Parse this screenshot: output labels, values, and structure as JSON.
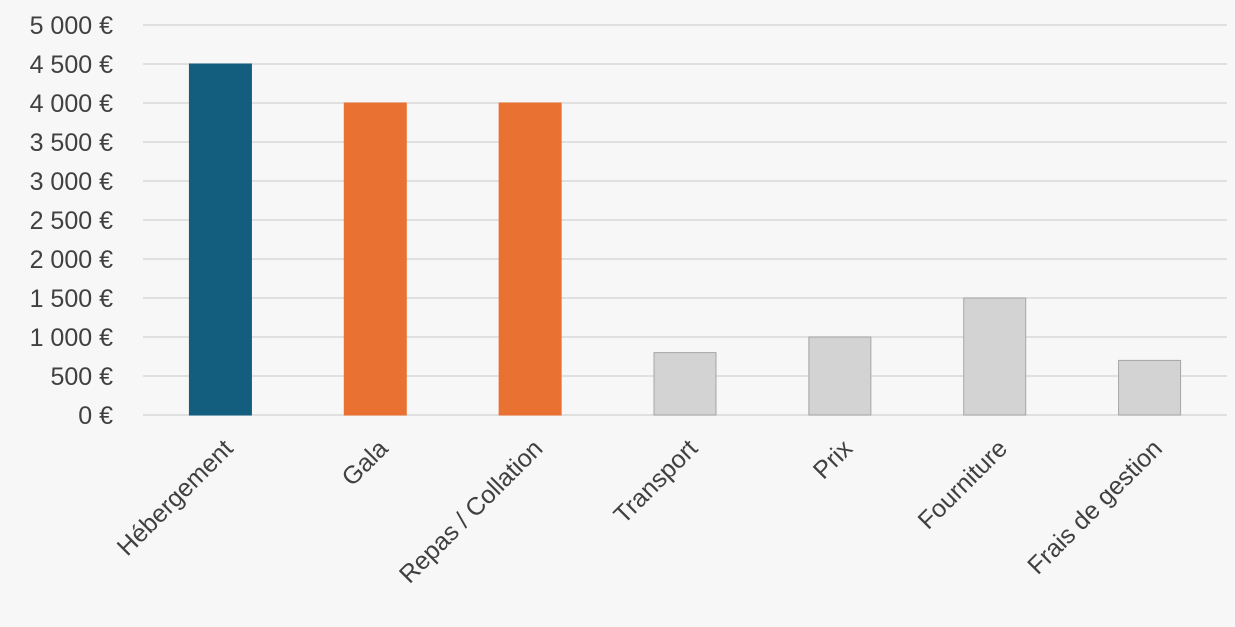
{
  "chart_data": {
    "type": "bar",
    "title": "",
    "xlabel": "",
    "ylabel": "",
    "categories": [
      "Hébergement",
      "Gala",
      "Repas / Collation",
      "Transport",
      "Prix",
      "Fourniture",
      "Frais de gestion"
    ],
    "values": [
      4500,
      4000,
      4000,
      800,
      1000,
      1500,
      700
    ],
    "ylim": [
      0,
      5000
    ],
    "yticks": [
      0,
      500,
      1000,
      1500,
      2000,
      2500,
      3000,
      3500,
      4000,
      4500,
      5000
    ],
    "ytick_labels": [
      "0 €",
      "500 €",
      "1 000 €",
      "1 500 €",
      "2 000 €",
      "2 500 €",
      "3 000 €",
      "3 500 €",
      "4 000 €",
      "4 500 €",
      "5 000 €"
    ],
    "grid": true,
    "legend": "none",
    "bar_colors": [
      "#135e7f",
      "#e97132",
      "#e97132",
      "#d3d3d3",
      "#d3d3d3",
      "#d3d3d3",
      "#d3d3d3"
    ],
    "bar_stroke_colors": [
      "#135e7f",
      "#e97132",
      "#e97132",
      "#a6a6a6",
      "#a6a6a6",
      "#a6a6a6",
      "#a6a6a6"
    ],
    "grid_color": "#d9d9d9"
  }
}
